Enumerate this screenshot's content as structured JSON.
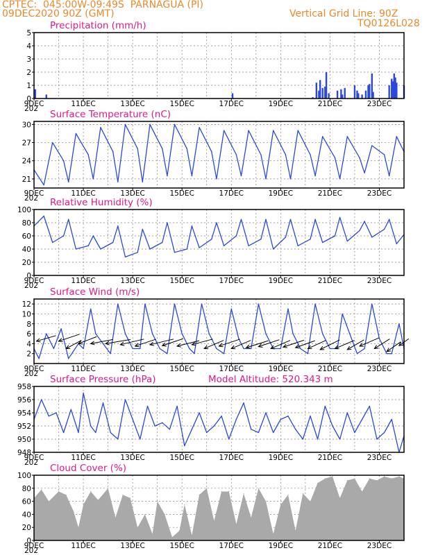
{
  "header": {
    "line1": "CPTEC:  045:00W-09:49S  PARNAGUA (PI)",
    "line2": "09DEC2020 90Z (GMT)",
    "grid_line": "Vertical Grid Line: 90Z",
    "run_code": "TQ0126L028"
  },
  "x_tick_labels": [
    "9DEC",
    "11DEC",
    "13DEC",
    "15DEC",
    "17DEC",
    "19DEC",
    "21DEC",
    "23DEC"
  ],
  "x_year_fragment": "202",
  "colors": {
    "header": "#e8892c",
    "title": "#e0198c",
    "line": "#2a48e0",
    "bar": "#2a48e0",
    "cloud": "#a9a9a9",
    "grid": "#808080"
  },
  "chart_data": [
    {
      "type": "bar",
      "title": "Precipitation (mm/h)",
      "x_start_day": 9,
      "x_end_day": 24,
      "ylim": [
        0,
        5
      ],
      "yticks": [
        0,
        1,
        2,
        3,
        4,
        5
      ],
      "x": [
        9.05,
        9.5,
        17.05,
        20.3,
        20.45,
        20.55,
        20.6,
        20.7,
        20.8,
        20.85,
        20.95,
        21.3,
        21.45,
        21.5,
        21.6,
        22.0,
        22.1,
        22.15,
        22.3,
        22.45,
        22.55,
        22.6,
        22.7,
        22.75,
        23.4,
        23.5,
        23.55,
        23.6,
        23.65,
        23.7,
        24.0
      ],
      "values": [
        0.7,
        0.3,
        0.4,
        0.1,
        1.2,
        0.6,
        1.4,
        0.8,
        0.9,
        2.0,
        0.4,
        0.6,
        0.7,
        0.3,
        0.8,
        1.0,
        0.6,
        0.4,
        0.3,
        0.6,
        1.0,
        1.1,
        1.9,
        0.5,
        1.0,
        1.5,
        1.3,
        1.9,
        1.6,
        1.2,
        1.0
      ]
    },
    {
      "type": "line",
      "title": "Surface Temperature (nC)",
      "x_start_day": 9,
      "x_end_day": 24,
      "ylim": [
        19.5,
        30.5
      ],
      "yticks": [
        21,
        24,
        27,
        30
      ],
      "x": [
        9.0,
        9.4,
        9.75,
        10.2,
        10.4,
        10.7,
        11.2,
        11.4,
        11.7,
        12.2,
        12.4,
        12.7,
        13.2,
        13.4,
        13.7,
        14.2,
        14.4,
        14.7,
        15.2,
        15.4,
        15.7,
        16.2,
        16.4,
        16.7,
        17.2,
        17.4,
        17.7,
        18.2,
        18.4,
        18.7,
        19.2,
        19.4,
        19.7,
        20.2,
        20.4,
        20.7,
        21.2,
        21.4,
        21.7,
        22.2,
        22.4,
        22.7,
        23.2,
        23.4,
        23.7,
        24.0
      ],
      "values": [
        22.5,
        20.0,
        27.0,
        24.0,
        20.5,
        28.5,
        25.0,
        21.0,
        29.5,
        25.5,
        20.5,
        30.0,
        26.0,
        20.5,
        30.0,
        26.0,
        21.5,
        30.0,
        26.0,
        21.5,
        29.5,
        25.5,
        21.0,
        29.0,
        25.0,
        21.5,
        29.0,
        25.0,
        21.0,
        29.0,
        25.0,
        21.0,
        29.0,
        25.0,
        21.5,
        28.0,
        24.5,
        21.0,
        28.0,
        24.5,
        22.0,
        26.5,
        25.0,
        21.5,
        28.0,
        25.5
      ]
    },
    {
      "type": "line",
      "title": "Relative Humidity (%)",
      "x_start_day": 9,
      "x_end_day": 24,
      "ylim": [
        0,
        100
      ],
      "yticks": [
        0,
        20,
        40,
        60,
        80,
        100
      ],
      "x": [
        9.0,
        9.4,
        9.75,
        10.2,
        10.4,
        10.7,
        11.2,
        11.4,
        11.7,
        12.2,
        12.4,
        12.7,
        13.2,
        13.4,
        13.7,
        14.2,
        14.4,
        14.7,
        15.2,
        15.4,
        15.7,
        16.2,
        16.4,
        16.7,
        17.2,
        17.4,
        17.7,
        18.2,
        18.4,
        18.7,
        19.2,
        19.4,
        19.7,
        20.2,
        20.4,
        20.7,
        21.2,
        21.4,
        21.7,
        22.2,
        22.4,
        22.7,
        23.2,
        23.4,
        23.7,
        24.0
      ],
      "values": [
        75,
        90,
        50,
        60,
        85,
        40,
        45,
        60,
        40,
        50,
        75,
        28,
        35,
        70,
        40,
        50,
        80,
        35,
        40,
        75,
        42,
        55,
        80,
        45,
        60,
        85,
        45,
        55,
        85,
        40,
        58,
        85,
        45,
        55,
        85,
        50,
        60,
        88,
        52,
        68,
        82,
        58,
        70,
        85,
        48,
        62
      ]
    },
    {
      "type": "line",
      "title": "Surface Wind (m/s)",
      "x_start_day": 9,
      "x_end_day": 24,
      "ylim": [
        0,
        13
      ],
      "yticks": [
        2,
        4,
        6,
        8,
        10,
        12
      ],
      "x": [
        9.0,
        9.2,
        9.5,
        9.8,
        10.1,
        10.4,
        10.8,
        11.0,
        11.3,
        11.5,
        11.8,
        12.1,
        12.4,
        12.7,
        13.0,
        13.3,
        13.5,
        13.8,
        14.1,
        14.4,
        14.7,
        15.0,
        15.3,
        15.5,
        15.8,
        16.1,
        16.4,
        16.7,
        17.0,
        17.3,
        17.5,
        17.8,
        18.1,
        18.4,
        18.7,
        19.0,
        19.3,
        19.5,
        19.8,
        20.1,
        20.4,
        20.7,
        21.0,
        21.3,
        21.5,
        21.8,
        22.1,
        22.4,
        22.7,
        23.0,
        23.3,
        23.5,
        23.8,
        24.0
      ],
      "values": [
        3,
        1,
        6,
        3,
        7,
        1,
        4,
        3,
        11,
        6,
        4,
        2,
        12,
        6,
        3,
        3,
        12,
        6,
        3,
        2,
        12,
        6,
        3,
        2,
        12,
        6,
        3,
        2,
        11,
        5,
        3,
        3,
        12,
        6,
        3,
        3,
        11,
        6,
        3,
        2,
        12,
        6,
        3,
        3,
        10,
        6,
        2,
        3,
        12,
        5,
        2,
        2,
        8,
        3
      ]
    },
    {
      "type": "line",
      "title": "Surface Pressure (hPa)",
      "annotation": "Model Altitude: 520.343  m",
      "x_start_day": 9,
      "x_end_day": 24,
      "ylim": [
        948,
        958
      ],
      "yticks": [
        948,
        950,
        952,
        954,
        956,
        958
      ],
      "x": [
        9.0,
        9.3,
        9.6,
        9.9,
        10.2,
        10.5,
        10.8,
        11.0,
        11.3,
        11.5,
        11.8,
        12.1,
        12.4,
        12.7,
        13.0,
        13.3,
        13.6,
        13.9,
        14.2,
        14.5,
        14.8,
        15.1,
        15.4,
        15.7,
        16.0,
        16.3,
        16.6,
        16.9,
        17.2,
        17.5,
        17.8,
        18.1,
        18.4,
        18.7,
        19.0,
        19.3,
        19.6,
        19.9,
        20.2,
        20.5,
        20.8,
        21.1,
        21.4,
        21.7,
        22.0,
        22.3,
        22.6,
        22.9,
        23.2,
        23.5,
        23.8,
        24.0
      ],
      "values": [
        953,
        956,
        953.5,
        954,
        951,
        954.5,
        951,
        957,
        952,
        951,
        955.5,
        951,
        950,
        956,
        953,
        950,
        955,
        952,
        952.5,
        951.5,
        955,
        949,
        951.5,
        954,
        951,
        952,
        953.5,
        950,
        953,
        955.5,
        951.5,
        951,
        954,
        951,
        953,
        953.5,
        951.5,
        950,
        953.5,
        950,
        955,
        952,
        950,
        954,
        951,
        953,
        955,
        950,
        951,
        953,
        948,
        950.5
      ]
    },
    {
      "type": "area",
      "title": "Cloud Cover (%)",
      "x_start_day": 9,
      "x_end_day": 24,
      "ylim": [
        0,
        100
      ],
      "yticks": [
        0,
        20,
        40,
        60,
        80,
        100
      ],
      "x": [
        9.0,
        9.3,
        9.6,
        10.0,
        10.3,
        10.6,
        10.8,
        11.0,
        11.3,
        11.6,
        12.0,
        12.3,
        12.6,
        12.9,
        13.2,
        13.5,
        13.8,
        14.0,
        14.3,
        14.6,
        14.9,
        15.1,
        15.4,
        15.7,
        16.0,
        16.3,
        16.6,
        16.9,
        17.2,
        17.5,
        17.8,
        18.1,
        18.4,
        18.7,
        19.0,
        19.3,
        19.6,
        19.9,
        20.2,
        20.5,
        20.8,
        21.1,
        21.4,
        21.7,
        22.0,
        22.3,
        22.6,
        22.9,
        23.2,
        23.5,
        23.8,
        24.0
      ],
      "values": [
        65,
        78,
        60,
        75,
        70,
        45,
        20,
        55,
        75,
        62,
        80,
        35,
        70,
        65,
        20,
        40,
        10,
        60,
        40,
        5,
        15,
        55,
        8,
        70,
        80,
        30,
        75,
        75,
        25,
        72,
        35,
        80,
        60,
        10,
        55,
        70,
        15,
        72,
        60,
        88,
        95,
        98,
        65,
        92,
        95,
        75,
        95,
        92,
        98,
        95,
        98,
        95
      ]
    }
  ]
}
